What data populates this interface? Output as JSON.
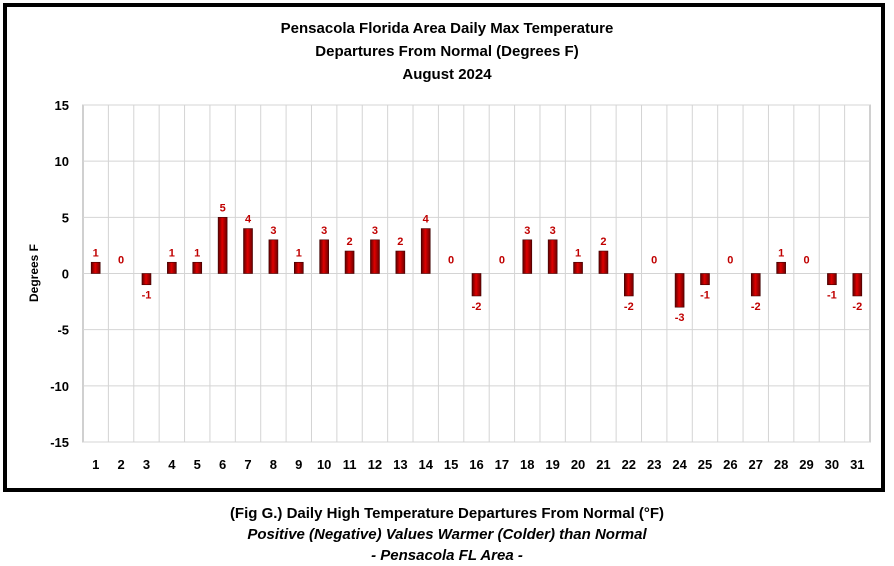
{
  "chart_data": {
    "type": "bar",
    "title_lines": [
      "Pensacola Florida Area Daily Max Temperature",
      "Departures From Normal (Degrees F)",
      "August 2024"
    ],
    "xlabel": "",
    "ylabel": "Degrees F",
    "ylim": [
      -15,
      15
    ],
    "yticks": [
      15,
      10,
      5,
      0,
      -5,
      -10,
      -15
    ],
    "grid": true,
    "categories": [
      "1",
      "2",
      "3",
      "4",
      "5",
      "6",
      "7",
      "8",
      "9",
      "10",
      "11",
      "12",
      "13",
      "14",
      "15",
      "16",
      "17",
      "18",
      "19",
      "20",
      "21",
      "22",
      "23",
      "24",
      "25",
      "26",
      "27",
      "28",
      "29",
      "30",
      "31"
    ],
    "values": [
      1,
      0,
      -1,
      1,
      1,
      5,
      4,
      3,
      1,
      3,
      2,
      3,
      2,
      4,
      0,
      -2,
      0,
      3,
      3,
      1,
      2,
      -2,
      0,
      -3,
      -1,
      0,
      -2,
      1,
      0,
      -1,
      -2
    ],
    "bar_color": "#c00000",
    "label_color": "#c00000"
  },
  "caption": {
    "line1": "(Fig G.) Daily High Temperature Departures From Normal (°F)",
    "line2": "Positive (Negative) Values Warmer (Colder) than Normal",
    "line3": "- Pensacola FL Area -"
  }
}
